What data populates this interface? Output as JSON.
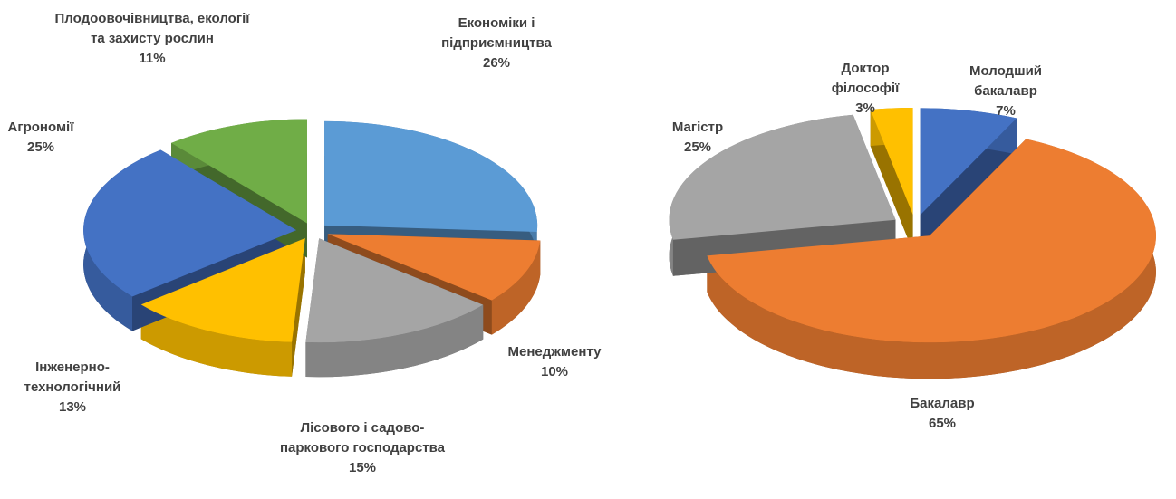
{
  "chart_data": [
    {
      "type": "pie",
      "categories": [
        "Економіки і підприємництва",
        "Менеджменту",
        "Лісового і садово-паркового господарства",
        "Інженерно-технологічний",
        "Агрономії",
        "Плодоовочівництва, екології та захисту рослин"
      ],
      "values": [
        26,
        10,
        15,
        13,
        25,
        11
      ],
      "value_labels": [
        "26%",
        "10%",
        "15%",
        "13%",
        "25%",
        "11%"
      ],
      "colors": [
        "#5b9bd5",
        "#ed7d31",
        "#a5a5a5",
        "#ffc000",
        "#4472c4",
        "#70ad47"
      ]
    },
    {
      "type": "pie",
      "categories": [
        "Молодший бакалавр",
        "Бакалавр",
        "Магістр",
        "Доктор філософії"
      ],
      "values": [
        7,
        65,
        25,
        3
      ],
      "value_labels": [
        "7%",
        "65%",
        "25%",
        "3%"
      ],
      "colors": [
        "#4472c4",
        "#ed7d31",
        "#a5a5a5",
        "#ffc000"
      ]
    }
  ]
}
